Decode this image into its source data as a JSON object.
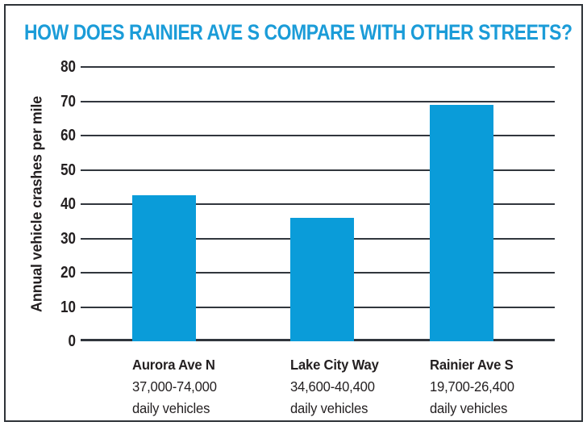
{
  "colors": {
    "title_blue": "#1b9cd8",
    "bar_blue": "#0a9cd9",
    "line_dark": "#31363d",
    "text_dark": "#231f20",
    "frame_border": "#2e3338",
    "background": "#ffffff"
  },
  "chart_data": {
    "type": "bar",
    "title": "HOW DOES RAINIER AVE S COMPARE WITH OTHER STREETS?",
    "ylabel": "Annual vehicle crashes per mile",
    "xlabel": "",
    "categories": [
      "Aurora Ave N",
      "Lake City Way",
      "Rainier Ave S"
    ],
    "category_sublabels": [
      [
        "37,000-74,000",
        "daily vehicles"
      ],
      [
        "34,600-40,400",
        "daily vehicles"
      ],
      [
        "19,700-26,400",
        "daily vehicles"
      ]
    ],
    "values": [
      42.5,
      36,
      69
    ],
    "yticks": [
      0,
      10,
      20,
      30,
      40,
      50,
      60,
      70,
      80
    ],
    "ylim": [
      0,
      80
    ],
    "grid": true,
    "legend": false
  }
}
